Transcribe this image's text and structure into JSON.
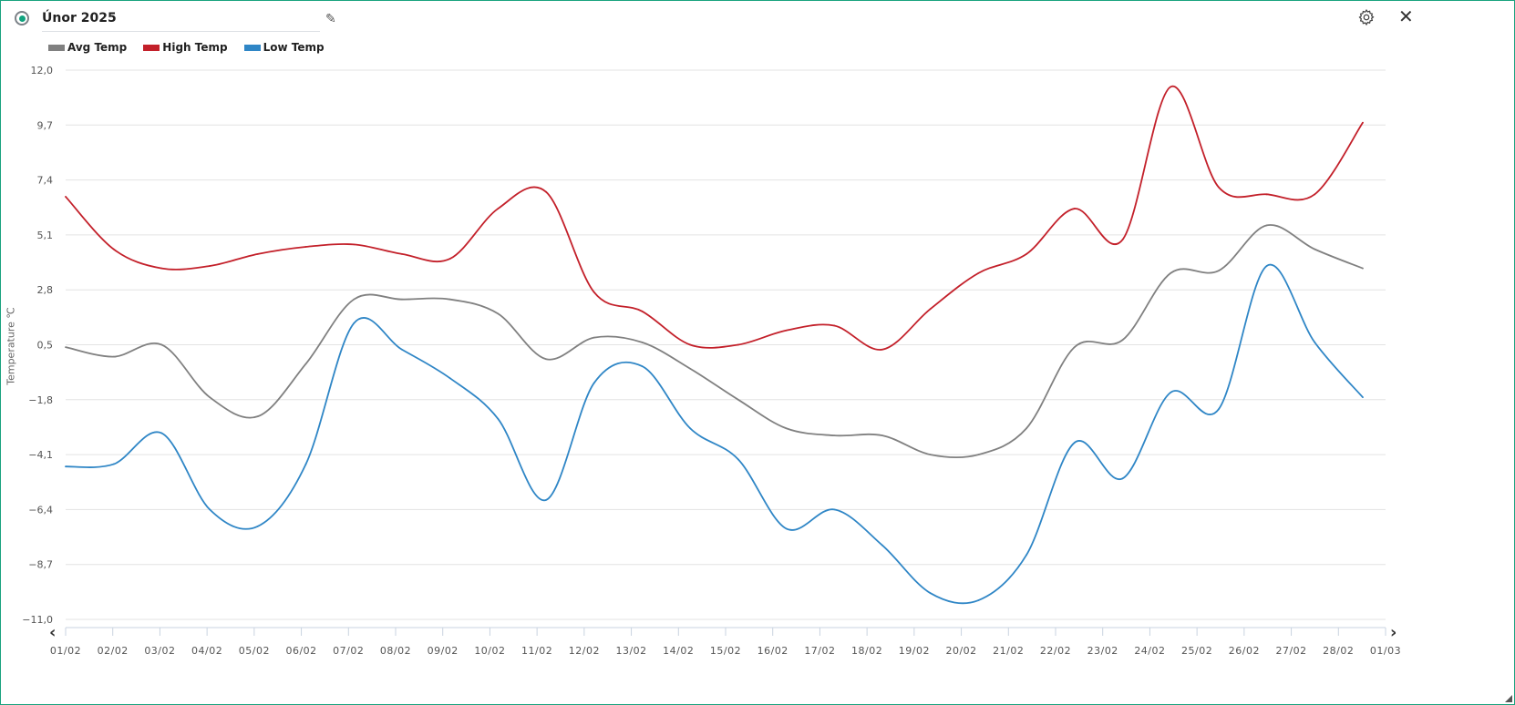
{
  "header": {
    "title": "Únor 2025",
    "status_color": "#12a37f",
    "edit_icon": "pencil-icon",
    "settings_icon": "gear-icon",
    "close_icon": "close-icon",
    "close_glyph": "✕"
  },
  "legend": [
    {
      "label": "Avg Temp",
      "color": "#808080"
    },
    {
      "label": "High Temp",
      "color": "#c3202a"
    },
    {
      "label": "Low Temp",
      "color": "#2f86c6"
    }
  ],
  "nav": {
    "prev_glyph": "‹",
    "next_glyph": "›"
  },
  "chart_data": {
    "type": "line",
    "ylabel": "Temperature ℃",
    "xlabel": "",
    "ylim": [
      -11.0,
      12.0
    ],
    "yticks": [
      "12,0",
      "9,7",
      "7,4",
      "5,1",
      "2,8",
      "0,5",
      "−1,8",
      "−4,1",
      "−6,4",
      "−8,7",
      "−11,0"
    ],
    "ytick_values": [
      12.0,
      9.7,
      7.4,
      5.1,
      2.8,
      0.5,
      -1.8,
      -4.1,
      -6.4,
      -8.7,
      -11.0
    ],
    "xticks": [
      "01/02",
      "02/02",
      "03/02",
      "04/02",
      "05/02",
      "06/02",
      "07/02",
      "08/02",
      "09/02",
      "10/02",
      "11/02",
      "12/02",
      "13/02",
      "14/02",
      "15/02",
      "16/02",
      "17/02",
      "18/02",
      "19/02",
      "20/02",
      "21/02",
      "22/02",
      "23/02",
      "24/02",
      "25/02",
      "26/02",
      "27/02",
      "28/02",
      "01/03"
    ],
    "grid": true,
    "smooth": true,
    "legend_position": "top-left",
    "series": [
      {
        "name": "Avg Temp",
        "color": "#808080",
        "values": [
          0.4,
          0.0,
          0.5,
          -1.7,
          -2.5,
          -0.3,
          2.4,
          2.4,
          2.4,
          1.8,
          -0.1,
          0.8,
          0.6,
          -0.5,
          -1.8,
          -3.0,
          -3.3,
          -3.3,
          -4.1,
          -4.1,
          -3.0,
          0.4,
          0.7,
          3.5,
          3.6,
          5.5,
          4.5,
          3.7
        ]
      },
      {
        "name": "High Temp",
        "color": "#c3202a",
        "values": [
          6.7,
          4.5,
          3.7,
          3.8,
          4.3,
          4.6,
          4.7,
          4.3,
          4.1,
          6.2,
          6.9,
          2.7,
          1.9,
          0.5,
          0.5,
          1.1,
          1.3,
          0.3,
          2.0,
          3.5,
          4.3,
          6.2,
          4.9,
          11.3,
          7.1,
          6.8,
          6.8,
          9.8
        ]
      },
      {
        "name": "Low Temp",
        "color": "#2f86c6",
        "values": [
          -4.6,
          -4.5,
          -3.2,
          -6.4,
          -7.1,
          -4.5,
          1.4,
          0.3,
          -0.9,
          -2.6,
          -6.0,
          -1.1,
          -0.4,
          -3.0,
          -4.3,
          -7.2,
          -6.4,
          -7.9,
          -9.9,
          -10.2,
          -8.3,
          -3.6,
          -5.1,
          -1.5,
          -2.2,
          3.8,
          0.6,
          -1.7
        ]
      }
    ]
  }
}
